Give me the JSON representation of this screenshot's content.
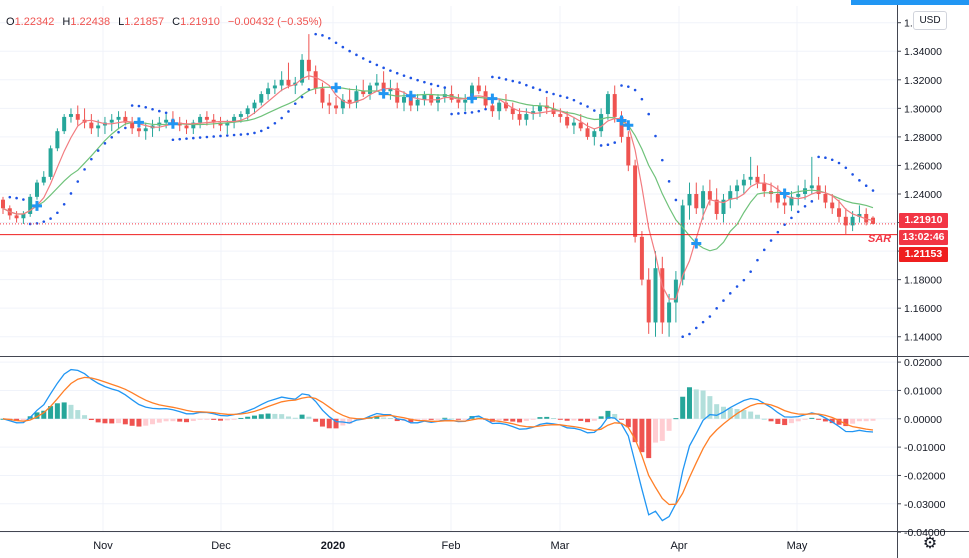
{
  "header": {
    "open_key": "O",
    "open_val": "1.22342",
    "high_key": "H",
    "high_val": "1.22438",
    "low_key": "L",
    "low_val": "1.21857",
    "close_key": "C",
    "close_val": "1.21910",
    "change_val": "−0.00432 (−0.35%)"
  },
  "currency_button": "USD",
  "labels": {
    "price_tag": "1.21910",
    "countdown_tag": "13:02:46",
    "sar_tag": "1.21153",
    "sar_text": "SAR"
  },
  "settings_icon": "gear-icon",
  "colors": {
    "up": "#26a69a",
    "down": "#ef5350",
    "fast_ma": "#f27c80",
    "slow_ma": "#6fc27a",
    "sar": "#1e53e5",
    "macd": "#2196f3",
    "signal": "#ff7f27",
    "marker": "#2196f3"
  },
  "chart_data": [
    {
      "type": "candlestick",
      "x_tick_labels": [
        "Nov",
        "Dec",
        "2020",
        "Feb",
        "Mar",
        "Apr",
        "May"
      ],
      "y_tick_labels": [
        "1.36000",
        "1.34000",
        "1.32000",
        "1.30000",
        "1.28000",
        "1.26000",
        "1.24000",
        "1.22000",
        "1.20000",
        "1.18000",
        "1.16000",
        "1.14000"
      ],
      "ylim": [
        1.1265,
        1.3717
      ],
      "last_close": 1.2191,
      "sar_current": 1.21153,
      "candles": [
        [
          1.236,
          1.238,
          1.226,
          1.23
        ],
        [
          1.23,
          1.232,
          1.222,
          1.225
        ],
        [
          1.225,
          1.228,
          1.22,
          1.223
        ],
        [
          1.223,
          1.228,
          1.219,
          1.226
        ],
        [
          1.226,
          1.24,
          1.224,
          1.238
        ],
        [
          1.238,
          1.25,
          1.236,
          1.248
        ],
        [
          1.248,
          1.256,
          1.246,
          1.252
        ],
        [
          1.252,
          1.274,
          1.25,
          1.272
        ],
        [
          1.272,
          1.286,
          1.27,
          1.284
        ],
        [
          1.284,
          1.296,
          1.282,
          1.294
        ],
        [
          1.294,
          1.3,
          1.29,
          1.296
        ],
        [
          1.296,
          1.302,
          1.288,
          1.292
        ],
        [
          1.292,
          1.3,
          1.286,
          1.29
        ],
        [
          1.29,
          1.296,
          1.282,
          1.286
        ],
        [
          1.286,
          1.292,
          1.28,
          1.288
        ],
        [
          1.288,
          1.294,
          1.282,
          1.29
        ],
        [
          1.29,
          1.296,
          1.284,
          1.292
        ],
        [
          1.292,
          1.298,
          1.286,
          1.294
        ],
        [
          1.294,
          1.298,
          1.288,
          1.29
        ],
        [
          1.29,
          1.294,
          1.282,
          1.286
        ],
        [
          1.286,
          1.29,
          1.28,
          1.284
        ],
        [
          1.284,
          1.29,
          1.278,
          1.286
        ],
        [
          1.286,
          1.292,
          1.28,
          1.288
        ],
        [
          1.288,
          1.294,
          1.284,
          1.29
        ],
        [
          1.29,
          1.296,
          1.286,
          1.292
        ],
        [
          1.292,
          1.298,
          1.288,
          1.29
        ],
        [
          1.29,
          1.294,
          1.284,
          1.288
        ],
        [
          1.288,
          1.292,
          1.282,
          1.286
        ],
        [
          1.286,
          1.292,
          1.282,
          1.29
        ],
        [
          1.29,
          1.296,
          1.286,
          1.294
        ],
        [
          1.294,
          1.298,
          1.288,
          1.292
        ],
        [
          1.292,
          1.296,
          1.286,
          1.29
        ],
        [
          1.29,
          1.294,
          1.284,
          1.288
        ],
        [
          1.288,
          1.292,
          1.282,
          1.29
        ],
        [
          1.29,
          1.296,
          1.286,
          1.294
        ],
        [
          1.294,
          1.298,
          1.29,
          1.296
        ],
        [
          1.296,
          1.302,
          1.292,
          1.3
        ],
        [
          1.3,
          1.306,
          1.296,
          1.304
        ],
        [
          1.304,
          1.312,
          1.302,
          1.31
        ],
        [
          1.31,
          1.318,
          1.306,
          1.314
        ],
        [
          1.314,
          1.32,
          1.31,
          1.316
        ],
        [
          1.316,
          1.326,
          1.312,
          1.32
        ],
        [
          1.32,
          1.332,
          1.314,
          1.316
        ],
        [
          1.316,
          1.322,
          1.31,
          1.318
        ],
        [
          1.318,
          1.338,
          1.316,
          1.334
        ],
        [
          1.334,
          1.352,
          1.32,
          1.326
        ],
        [
          1.326,
          1.33,
          1.31,
          1.314
        ],
        [
          1.314,
          1.318,
          1.3,
          1.304
        ],
        [
          1.304,
          1.31,
          1.296,
          1.302
        ],
        [
          1.302,
          1.308,
          1.296,
          1.3
        ],
        [
          1.3,
          1.31,
          1.296,
          1.306
        ],
        [
          1.306,
          1.314,
          1.3,
          1.304
        ],
        [
          1.304,
          1.316,
          1.3,
          1.312
        ],
        [
          1.312,
          1.32,
          1.308,
          1.31
        ],
        [
          1.31,
          1.318,
          1.306,
          1.316
        ],
        [
          1.316,
          1.324,
          1.312,
          1.318
        ],
        [
          1.318,
          1.326,
          1.31,
          1.312
        ],
        [
          1.312,
          1.32,
          1.306,
          1.314
        ],
        [
          1.314,
          1.318,
          1.3,
          1.304
        ],
        [
          1.304,
          1.312,
          1.298,
          1.308
        ],
        [
          1.308,
          1.312,
          1.298,
          1.302
        ],
        [
          1.302,
          1.31,
          1.298,
          1.306
        ],
        [
          1.306,
          1.312,
          1.302,
          1.31
        ],
        [
          1.31,
          1.314,
          1.302,
          1.304
        ],
        [
          1.304,
          1.31,
          1.298,
          1.308
        ],
        [
          1.308,
          1.314,
          1.304,
          1.31
        ],
        [
          1.31,
          1.316,
          1.304,
          1.306
        ],
        [
          1.306,
          1.31,
          1.3,
          1.304
        ],
        [
          1.304,
          1.31,
          1.298,
          1.306
        ],
        [
          1.306,
          1.318,
          1.304,
          1.316
        ],
        [
          1.316,
          1.322,
          1.31,
          1.312
        ],
        [
          1.312,
          1.316,
          1.3,
          1.302
        ],
        [
          1.302,
          1.306,
          1.294,
          1.298
        ],
        [
          1.298,
          1.306,
          1.292,
          1.304
        ],
        [
          1.304,
          1.31,
          1.298,
          1.3
        ],
        [
          1.3,
          1.304,
          1.292,
          1.296
        ],
        [
          1.296,
          1.3,
          1.288,
          1.292
        ],
        [
          1.292,
          1.3,
          1.288,
          1.296
        ],
        [
          1.296,
          1.302,
          1.292,
          1.298
        ],
        [
          1.298,
          1.304,
          1.294,
          1.302
        ],
        [
          1.302,
          1.308,
          1.296,
          1.3
        ],
        [
          1.3,
          1.304,
          1.294,
          1.296
        ],
        [
          1.296,
          1.3,
          1.29,
          1.294
        ],
        [
          1.294,
          1.298,
          1.286,
          1.288
        ],
        [
          1.288,
          1.294,
          1.282,
          1.29
        ],
        [
          1.29,
          1.296,
          1.284,
          1.286
        ],
        [
          1.286,
          1.29,
          1.278,
          1.28
        ],
        [
          1.28,
          1.286,
          1.274,
          1.284
        ],
        [
          1.284,
          1.3,
          1.28,
          1.296
        ],
        [
          1.296,
          1.312,
          1.292,
          1.31
        ],
        [
          1.31,
          1.316,
          1.29,
          1.294
        ],
        [
          1.294,
          1.298,
          1.276,
          1.28
        ],
        [
          1.28,
          1.284,
          1.256,
          1.26
        ],
        [
          1.26,
          1.264,
          1.206,
          1.21
        ],
        [
          1.21,
          1.214,
          1.176,
          1.18
        ],
        [
          1.18,
          1.188,
          1.142,
          1.15
        ],
        [
          1.15,
          1.2,
          1.14,
          1.188
        ],
        [
          1.188,
          1.196,
          1.142,
          1.15
        ],
        [
          1.15,
          1.17,
          1.14,
          1.164
        ],
        [
          1.164,
          1.186,
          1.15,
          1.18
        ],
        [
          1.18,
          1.236,
          1.176,
          1.232
        ],
        [
          1.232,
          1.248,
          1.222,
          1.24
        ],
        [
          1.24,
          1.248,
          1.226,
          1.23
        ],
        [
          1.23,
          1.246,
          1.222,
          1.242
        ],
        [
          1.242,
          1.25,
          1.232,
          1.236
        ],
        [
          1.236,
          1.244,
          1.222,
          1.226
        ],
        [
          1.226,
          1.24,
          1.22,
          1.236
        ],
        [
          1.236,
          1.246,
          1.23,
          1.242
        ],
        [
          1.242,
          1.25,
          1.236,
          1.246
        ],
        [
          1.246,
          1.254,
          1.24,
          1.25
        ],
        [
          1.25,
          1.266,
          1.246,
          1.252
        ],
        [
          1.252,
          1.26,
          1.244,
          1.248
        ],
        [
          1.248,
          1.254,
          1.238,
          1.242
        ],
        [
          1.242,
          1.248,
          1.234,
          1.24
        ],
        [
          1.24,
          1.246,
          1.23,
          1.234
        ],
        [
          1.234,
          1.24,
          1.226,
          1.232
        ],
        [
          1.232,
          1.242,
          1.228,
          1.238
        ],
        [
          1.238,
          1.246,
          1.232,
          1.24
        ],
        [
          1.24,
          1.25,
          1.236,
          1.244
        ],
        [
          1.244,
          1.266,
          1.24,
          1.246
        ],
        [
          1.246,
          1.252,
          1.236,
          1.24
        ],
        [
          1.24,
          1.246,
          1.23,
          1.234
        ],
        [
          1.234,
          1.24,
          1.226,
          1.23
        ],
        [
          1.23,
          1.236,
          1.22,
          1.224
        ],
        [
          1.224,
          1.23,
          1.212,
          1.218
        ],
        [
          1.218,
          1.228,
          1.214,
          1.224
        ],
        [
          1.224,
          1.232,
          1.22,
          1.226
        ],
        [
          1.226,
          1.23,
          1.218,
          1.22
        ],
        [
          1.2234,
          1.2244,
          1.2186,
          1.2191
        ]
      ]
    },
    {
      "type": "bar",
      "name": "MACD",
      "y_tick_labels": [
        "0.02000",
        "0.01000",
        "0.00000",
        "-0.01000",
        "-0.02000",
        "-0.03000",
        "-0.04000"
      ],
      "ylim": [
        -0.0396,
        0.0218
      ],
      "x_tick_labels": [
        "Nov",
        "Dec",
        "2020",
        "Feb",
        "Mar",
        "Apr",
        "May"
      ]
    }
  ]
}
